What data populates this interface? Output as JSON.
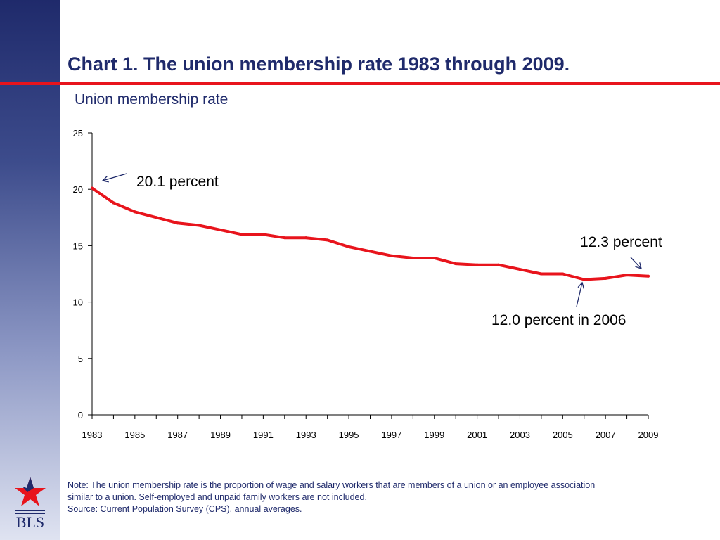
{
  "slide": {
    "title": "Chart 1.  The union membership rate 1983 through 2009.",
    "subtitle": "Union membership rate",
    "note_lines": [
      "Note: The union membership rate is the proportion of wage and salary workers that are members of a union or an employee association",
      "similar to a union.  Self-employed and unpaid family workers are not included.",
      "Source:  Current Population Survey (CPS), annual averages."
    ],
    "logo_text": "BLS",
    "colors": {
      "accent": "#e8141c",
      "navy": "#1f2a6b",
      "line": "#e8141c",
      "arrow": "#1f2a6b"
    }
  },
  "chart_data": {
    "type": "line",
    "title": "Union membership rate",
    "xlabel": "",
    "ylabel": "",
    "ylim": [
      0,
      25
    ],
    "yticks": [
      0,
      5,
      10,
      15,
      20,
      25
    ],
    "xlim": [
      1983,
      2009
    ],
    "xtick_labels": [
      "1983",
      "1985",
      "1987",
      "1989",
      "1991",
      "1993",
      "1995",
      "1997",
      "1999",
      "2001",
      "2003",
      "2005",
      "2007",
      "2009"
    ],
    "grid": false,
    "legend": "none",
    "series": [
      {
        "color": "#e8141c",
        "x": [
          1983,
          1984,
          1985,
          1986,
          1987,
          1988,
          1989,
          1990,
          1991,
          1992,
          1993,
          1994,
          1995,
          1996,
          1997,
          1998,
          1999,
          2000,
          2001,
          2002,
          2003,
          2004,
          2005,
          2006,
          2007,
          2008,
          2009
        ],
        "values": [
          20.1,
          18.8,
          18.0,
          17.5,
          17.0,
          16.8,
          16.4,
          16.0,
          16.0,
          15.7,
          15.7,
          15.5,
          14.9,
          14.5,
          14.1,
          13.9,
          13.9,
          13.4,
          13.3,
          13.3,
          12.9,
          12.5,
          12.5,
          12.0,
          12.1,
          12.4,
          12.3
        ]
      }
    ],
    "annotations": [
      {
        "text": "20.1 percent",
        "x": 1983,
        "y": 20.1
      },
      {
        "text": "12.3 percent",
        "x": 2009,
        "y": 12.3
      },
      {
        "text": "12.0 percent in 2006",
        "x": 2006,
        "y": 12.0
      }
    ]
  }
}
